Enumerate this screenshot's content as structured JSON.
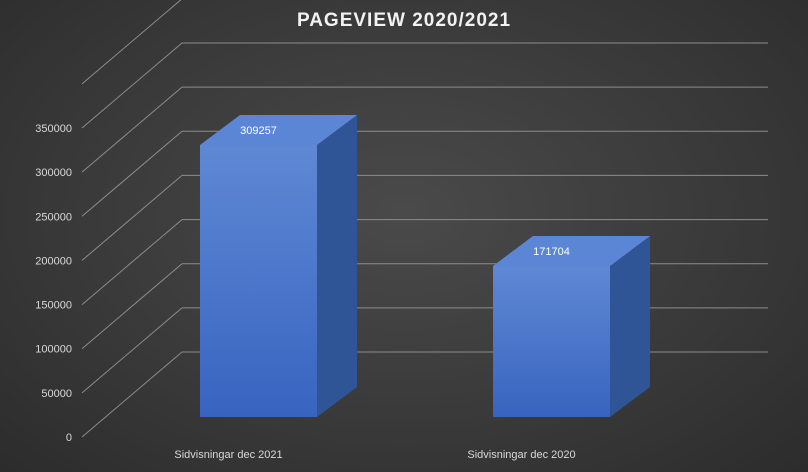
{
  "chart_data": {
    "type": "bar",
    "title": "PAGEVIEW 2020/2021",
    "categories": [
      "Sidvisningar dec 2021",
      "Sidvisningar dec 2020"
    ],
    "values": [
      309257,
      171704
    ],
    "data_labels": [
      "309257",
      "171704"
    ],
    "ylim": [
      0,
      350000
    ],
    "yticks": [
      "0",
      "50000",
      "100000",
      "150000",
      "200000",
      "250000",
      "300000",
      "350000"
    ],
    "grid": true,
    "three_d": true,
    "legend": "none",
    "colors": {
      "bar_front": "#4472c4",
      "bar_side": "#2f5597",
      "bar_top": "#5b86d6",
      "grid": "#8c8c8c",
      "background": "#3a3a3a"
    }
  }
}
